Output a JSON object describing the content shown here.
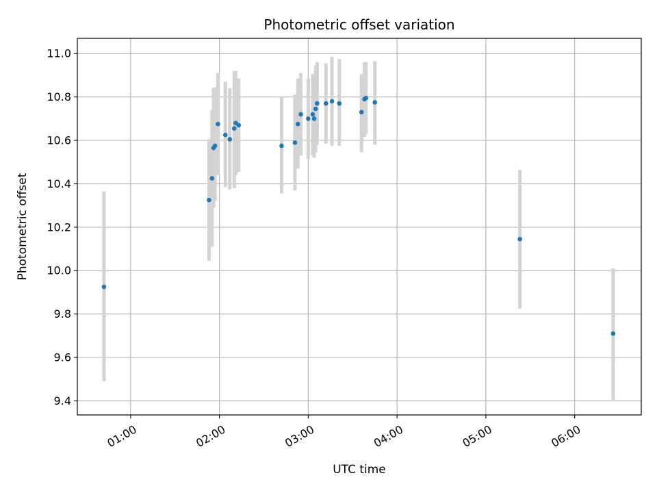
{
  "chart_data": {
    "type": "scatter",
    "title": "Photometric offset variation",
    "xlabel": "UTC time",
    "ylabel": "Photometric offset",
    "x_ticks": [
      "01:00",
      "02:00",
      "03:00",
      "04:00",
      "05:00",
      "06:00"
    ],
    "y_ticks": [
      "9.4",
      "9.6",
      "9.8",
      "10.0",
      "10.2",
      "10.4",
      "10.6",
      "10.8",
      "11.0"
    ],
    "xlim": [
      "00:24",
      "06:45"
    ],
    "ylim": [
      9.335,
      11.07
    ],
    "grid": true,
    "marker_color": "#1f77b4",
    "errorbar_color": "#d3d3d3",
    "points": [
      {
        "t": "00:42",
        "y": 9.925,
        "lo": 9.49,
        "hi": 10.365
      },
      {
        "t": "01:53",
        "y": 10.325,
        "lo": 10.045,
        "hi": 10.605
      },
      {
        "t": "01:55",
        "y": 10.425,
        "lo": 10.11,
        "hi": 10.74
      },
      {
        "t": "01:56",
        "y": 10.565,
        "lo": 10.29,
        "hi": 10.84
      },
      {
        "t": "01:57",
        "y": 10.575,
        "lo": 10.32,
        "hi": 10.845
      },
      {
        "t": "01:59",
        "y": 10.675,
        "lo": 10.44,
        "hi": 10.91
      },
      {
        "t": "02:04",
        "y": 10.625,
        "lo": 10.385,
        "hi": 10.87
      },
      {
        "t": "02:07",
        "y": 10.605,
        "lo": 10.375,
        "hi": 10.84
      },
      {
        "t": "02:10",
        "y": 10.655,
        "lo": 10.38,
        "hi": 10.92
      },
      {
        "t": "02:11",
        "y": 10.68,
        "lo": 10.44,
        "hi": 10.92
      },
      {
        "t": "02:13",
        "y": 10.67,
        "lo": 10.455,
        "hi": 10.885
      },
      {
        "t": "02:42",
        "y": 10.575,
        "lo": 10.355,
        "hi": 10.8
      },
      {
        "t": "02:51",
        "y": 10.59,
        "lo": 10.37,
        "hi": 10.81
      },
      {
        "t": "02:53",
        "y": 10.675,
        "lo": 10.47,
        "hi": 10.885
      },
      {
        "t": "02:55",
        "y": 10.72,
        "lo": 10.53,
        "hi": 10.91
      },
      {
        "t": "03:00",
        "y": 10.7,
        "lo": 10.515,
        "hi": 10.885
      },
      {
        "t": "03:03",
        "y": 10.72,
        "lo": 10.53,
        "hi": 10.905
      },
      {
        "t": "03:04",
        "y": 10.7,
        "lo": 10.52,
        "hi": 10.885
      },
      {
        "t": "03:05",
        "y": 10.745,
        "lo": 10.545,
        "hi": 10.945
      },
      {
        "t": "03:06",
        "y": 10.77,
        "lo": 10.58,
        "hi": 10.96
      },
      {
        "t": "03:12",
        "y": 10.77,
        "lo": 10.585,
        "hi": 10.955
      },
      {
        "t": "03:16",
        "y": 10.78,
        "lo": 10.575,
        "hi": 10.985
      },
      {
        "t": "03:21",
        "y": 10.77,
        "lo": 10.575,
        "hi": 10.975
      },
      {
        "t": "03:36",
        "y": 10.73,
        "lo": 10.545,
        "hi": 10.905
      },
      {
        "t": "03:38",
        "y": 10.79,
        "lo": 10.615,
        "hi": 10.96
      },
      {
        "t": "03:39",
        "y": 10.795,
        "lo": 10.63,
        "hi": 10.96
      },
      {
        "t": "03:45",
        "y": 10.775,
        "lo": 10.58,
        "hi": 10.965
      },
      {
        "t": "05:23",
        "y": 10.145,
        "lo": 9.825,
        "hi": 10.465
      },
      {
        "t": "06:26",
        "y": 9.71,
        "lo": 9.405,
        "hi": 10.01
      }
    ]
  }
}
